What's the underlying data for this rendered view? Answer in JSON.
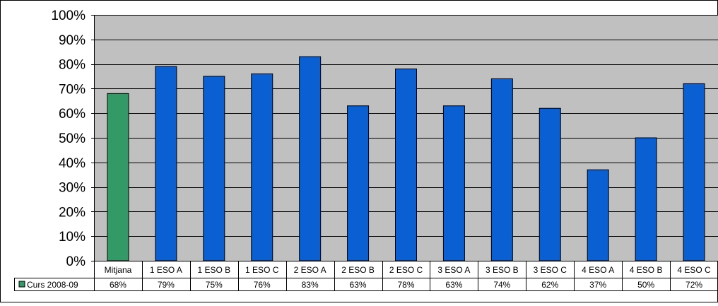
{
  "chart_data": {
    "type": "bar",
    "title": "",
    "xlabel": "",
    "ylabel": "",
    "ylim": [
      0,
      100
    ],
    "y_tick_values": [
      0,
      10,
      20,
      30,
      40,
      50,
      60,
      70,
      80,
      90,
      100
    ],
    "y_tick_labels": [
      "0%",
      "10%",
      "20%",
      "30%",
      "40%",
      "50%",
      "60%",
      "70%",
      "80%",
      "90%",
      "100%"
    ],
    "grid": true,
    "plot_background": "#c0c0c0",
    "categories": [
      "Mitjana",
      "1 ESO A",
      "1 ESO B",
      "1 ESO C",
      "2 ESO A",
      "2 ESO B",
      "2 ESO C",
      "3 ESO A",
      "3 ESO B",
      "3 ESO C",
      "4 ESO A",
      "4 ESO B",
      "4 ESO C"
    ],
    "series": [
      {
        "name": "Curs 2008-09",
        "values": [
          68,
          79,
          75,
          76,
          83,
          63,
          78,
          63,
          74,
          62,
          37,
          50,
          72
        ],
        "value_labels": [
          "68%",
          "79%",
          "75%",
          "76%",
          "83%",
          "63%",
          "78%",
          "63%",
          "74%",
          "62%",
          "37%",
          "50%",
          "72%"
        ],
        "color": "#0a5fd2",
        "highlight_color": "#339966",
        "highlight_category": "Mitjana"
      }
    ],
    "legend": {
      "placement": "data-table",
      "label": "Curs 2008-09",
      "color": "#339966"
    },
    "data_table": true
  }
}
